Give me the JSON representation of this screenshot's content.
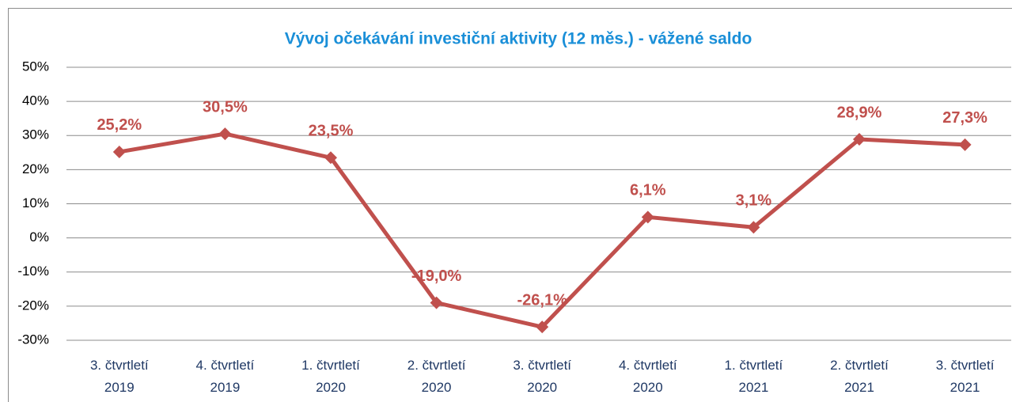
{
  "chart_data": {
    "type": "line",
    "title": "Vývoj očekávání investiční aktivity (12 měs.) - vážené saldo",
    "categories": [
      [
        "3. čtvrtletí",
        "2019"
      ],
      [
        "4. čtvrtletí",
        "2019"
      ],
      [
        "1. čtvrtletí",
        "2020"
      ],
      [
        "2. čtvrtletí",
        "2020"
      ],
      [
        "3. čtvrtletí",
        "2020"
      ],
      [
        "4. čtvrtletí",
        "2020"
      ],
      [
        "1. čtvrtletí",
        "2021"
      ],
      [
        "2. čtvrtletí",
        "2021"
      ],
      [
        "3. čtvrtletí",
        "2021"
      ]
    ],
    "series": [
      {
        "name": "vážené saldo",
        "color": "#c0504d",
        "values": [
          25.2,
          30.5,
          23.5,
          -19.0,
          -26.1,
          6.1,
          3.1,
          28.9,
          27.3
        ],
        "value_labels": [
          "25,2%",
          "30,5%",
          "23,5%",
          "-19,0%",
          "-26,1%",
          "6,1%",
          "3,1%",
          "28,9%",
          "27,3%"
        ]
      }
    ],
    "ylim": [
      -30,
      50
    ],
    "yticks": [
      {
        "value": -30,
        "label": "-30%"
      },
      {
        "value": -20,
        "label": "-20%"
      },
      {
        "value": -10,
        "label": "-10%"
      },
      {
        "value": 0,
        "label": "0%"
      },
      {
        "value": 10,
        "label": "10%"
      },
      {
        "value": 20,
        "label": "20%"
      },
      {
        "value": 30,
        "label": "30%"
      },
      {
        "value": 40,
        "label": "40%"
      },
      {
        "value": 50,
        "label": "50%"
      }
    ],
    "grid": true
  }
}
